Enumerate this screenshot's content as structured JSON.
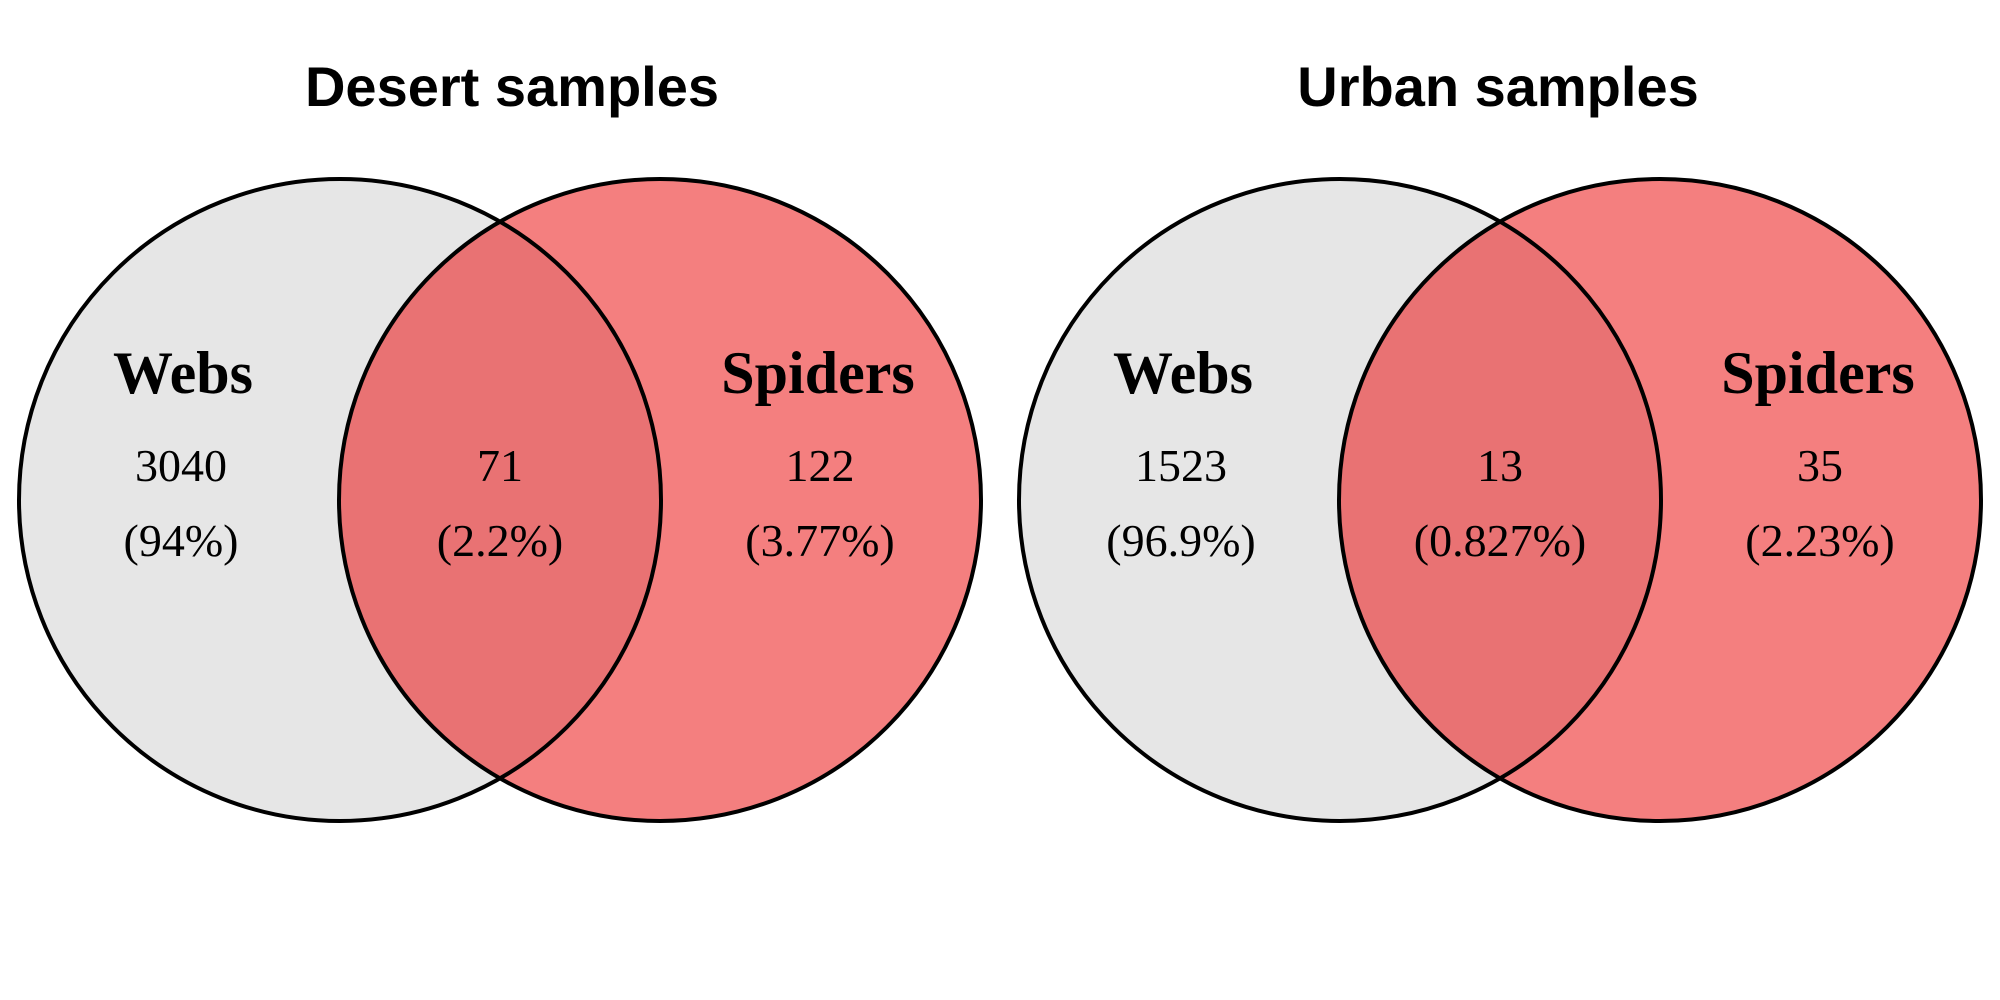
{
  "chart_data": [
    {
      "type": "venn",
      "title": "Desert samples",
      "sets": [
        {
          "name": "Webs",
          "color": "#E6E6E6"
        },
        {
          "name": "Spiders",
          "color": "#F47F7F"
        }
      ],
      "overlap_color": "#E97273",
      "regions": [
        {
          "region": "Webs only",
          "count": "3040",
          "percent": "(94%)"
        },
        {
          "region": "Webs and Spiders",
          "count": "71",
          "percent": "(2.2%)"
        },
        {
          "region": "Spiders only",
          "count": "122",
          "percent": "(3.77%)"
        }
      ]
    },
    {
      "type": "venn",
      "title": "Urban samples",
      "sets": [
        {
          "name": "Webs",
          "color": "#E6E6E6"
        },
        {
          "name": "Spiders",
          "color": "#F47F7F"
        }
      ],
      "overlap_color": "#E97273",
      "regions": [
        {
          "region": "Webs only",
          "count": "1523",
          "percent": "(96.9%)"
        },
        {
          "region": "Webs and Spiders",
          "count": "13",
          "percent": "(0.827%)"
        },
        {
          "region": "Spiders only",
          "count": "35",
          "percent": "(2.23%)"
        }
      ]
    }
  ]
}
